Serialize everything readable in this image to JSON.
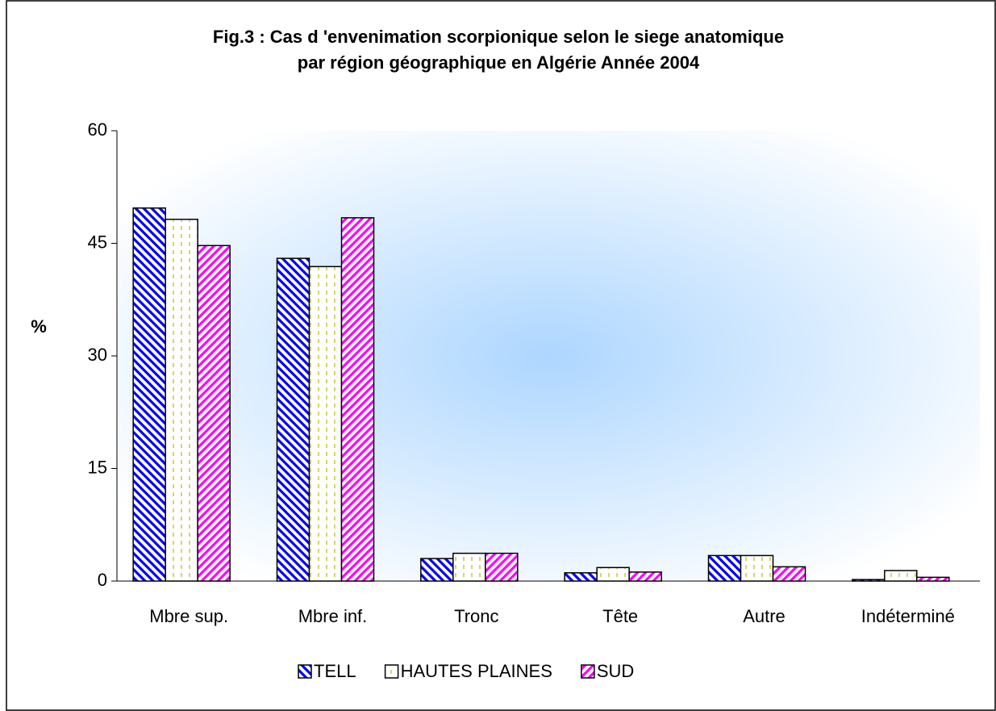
{
  "chart_data": {
    "type": "bar",
    "title": [
      "Fig.3 : Cas d 'envenimation scorpionique selon le siege anatomique",
      "par région géographique en Algérie   Année 2004"
    ],
    "y_label": "%",
    "categories": [
      "Mbre sup.",
      "Mbre inf.",
      "Tronc",
      "Tête",
      "Autre",
      "Indéterminé"
    ],
    "series": [
      {
        "name": "TELL",
        "color": "#0000ff",
        "hatch": "backward-diagonal",
        "values": [
          49.7,
          43.0,
          3.0,
          1.1,
          3.4,
          0.2
        ]
      },
      {
        "name": "HAUTES PLAINES",
        "color": "#c8c832",
        "hatch": "dashed-vertical",
        "values": [
          48.2,
          41.9,
          3.7,
          1.8,
          3.4,
          1.4
        ]
      },
      {
        "name": "SUD",
        "color": "#ff00ff",
        "hatch": "forward-diagonal",
        "values": [
          44.7,
          48.4,
          3.7,
          1.2,
          1.9,
          0.5
        ]
      }
    ],
    "ylim": [
      0,
      60
    ],
    "yticks": [
      0,
      15,
      30,
      45,
      60
    ],
    "legend": "bottom"
  }
}
